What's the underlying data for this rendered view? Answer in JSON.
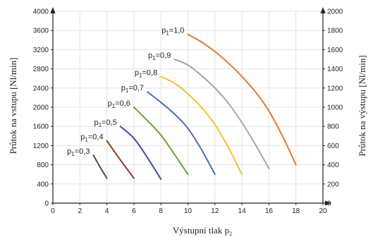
{
  "chart_data": {
    "type": "line",
    "xlabel_main": "Výstupní tlak p",
    "xlabel_sub": "2",
    "ylabel_left": "Průtok na vstupu [Nl/min]",
    "ylabel_right": "Průtok na výstupu [Nl/min]",
    "xlim": [
      0,
      20
    ],
    "ylim_left": [
      0,
      4000
    ],
    "ylim_right": [
      0,
      2000
    ],
    "x_ticks": [
      0,
      2,
      4,
      6,
      8,
      10,
      12,
      14,
      16,
      18,
      20
    ],
    "y_ticks_left": [
      0,
      400,
      800,
      1200,
      1600,
      2000,
      2400,
      2800,
      3200,
      3600,
      4000
    ],
    "y_ticks_right": [
      0,
      200,
      400,
      600,
      800,
      1000,
      1200,
      1400,
      1600,
      1800,
      2000
    ],
    "grid": true,
    "series": [
      {
        "label_prefix": "p",
        "label_sub": "1",
        "label_value": "=0,3",
        "color": "#4d4d4d",
        "x": [
          3.0,
          3.5,
          4.0
        ],
        "y": [
          1000,
          750,
          520
        ]
      },
      {
        "label_prefix": "p",
        "label_sub": "1",
        "label_value": "=0,4",
        "color": "#8b3a1e",
        "x": [
          4.0,
          5.0,
          6.0
        ],
        "y": [
          1300,
          900,
          520
        ]
      },
      {
        "label_prefix": "p",
        "label_sub": "1",
        "label_value": "=0,5",
        "color": "#3f4fa0",
        "x": [
          5.0,
          6.0,
          7.0,
          8.0
        ],
        "y": [
          1600,
          1350,
          950,
          500
        ]
      },
      {
        "label_prefix": "p",
        "label_sub": "1",
        "label_value": "=0,6",
        "color": "#6aa336",
        "x": [
          6.0,
          7.0,
          8.0,
          9.0,
          10.0
        ],
        "y": [
          2000,
          1720,
          1420,
          1020,
          600
        ]
      },
      {
        "label_prefix": "p",
        "label_sub": "1",
        "label_value": "=0,7",
        "color": "#4a6bb5",
        "x": [
          7.0,
          8.0,
          9.0,
          10.0,
          11.0,
          12.0
        ],
        "y": [
          2320,
          2100,
          1860,
          1560,
          1120,
          600
        ]
      },
      {
        "label_prefix": "p",
        "label_sub": "1",
        "label_value": "=0,8",
        "color": "#f2c12e",
        "x": [
          8.0,
          9.0,
          10.0,
          11.0,
          12.0,
          13.0,
          14.0
        ],
        "y": [
          2640,
          2500,
          2280,
          2000,
          1640,
          1160,
          600
        ]
      },
      {
        "label_prefix": "p",
        "label_sub": "1",
        "label_value": "=0,9",
        "color": "#a5a5a5",
        "x": [
          9.0,
          10.0,
          11.0,
          12.0,
          13.0,
          14.0,
          15.0,
          16.0
        ],
        "y": [
          3000,
          2880,
          2660,
          2400,
          2080,
          1680,
          1220,
          720
        ]
      },
      {
        "label_prefix": "p",
        "label_sub": "1",
        "label_value": "=1,0",
        "color": "#e07b2f",
        "x": [
          10.0,
          11.0,
          12.0,
          13.0,
          14.0,
          15.0,
          16.0,
          17.0,
          18.0
        ],
        "y": [
          3520,
          3360,
          3160,
          2920,
          2640,
          2320,
          1920,
          1400,
          800
        ]
      }
    ]
  }
}
